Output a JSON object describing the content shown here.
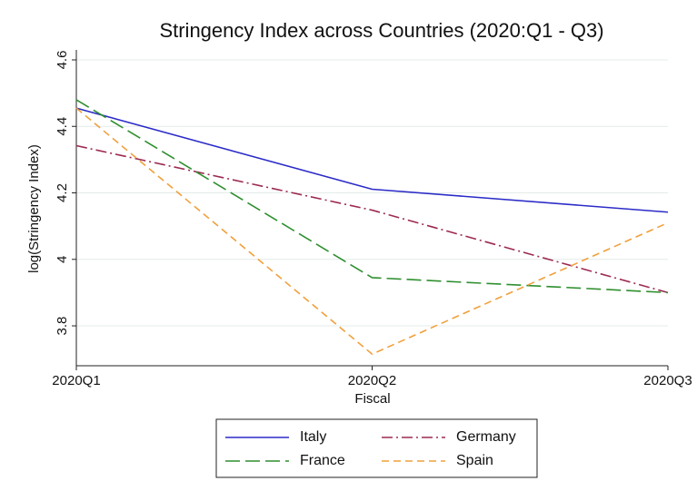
{
  "chart_data": {
    "type": "line",
    "title": "Stringency Index across Countries (2020:Q1 - Q3)",
    "x_label": "Fiscal",
    "y_label": "log(Stringency Index)",
    "categories": [
      "2020Q1",
      "2020Q2",
      "2020Q3"
    ],
    "series": [
      {
        "name": "Italy",
        "color": "#2b2bc8",
        "dash": "solid",
        "values": [
          4.455,
          4.211,
          4.142
        ]
      },
      {
        "name": "Germany",
        "color": "#9c2a52",
        "dash": "dashdot",
        "values": [
          4.342,
          4.148,
          3.9
        ]
      },
      {
        "name": "France",
        "color": "#2f8f2f",
        "dash": "longdash",
        "values": [
          4.48,
          3.945,
          3.9
        ]
      },
      {
        "name": "Spain",
        "color": "#f0a03c",
        "dash": "shortdash",
        "values": [
          4.455,
          3.715,
          4.11
        ]
      }
    ],
    "ylim": [
      3.68,
      4.63
    ],
    "yticks": [
      3.8,
      4,
      4.2,
      4.4,
      4.6
    ],
    "grid": true
  }
}
